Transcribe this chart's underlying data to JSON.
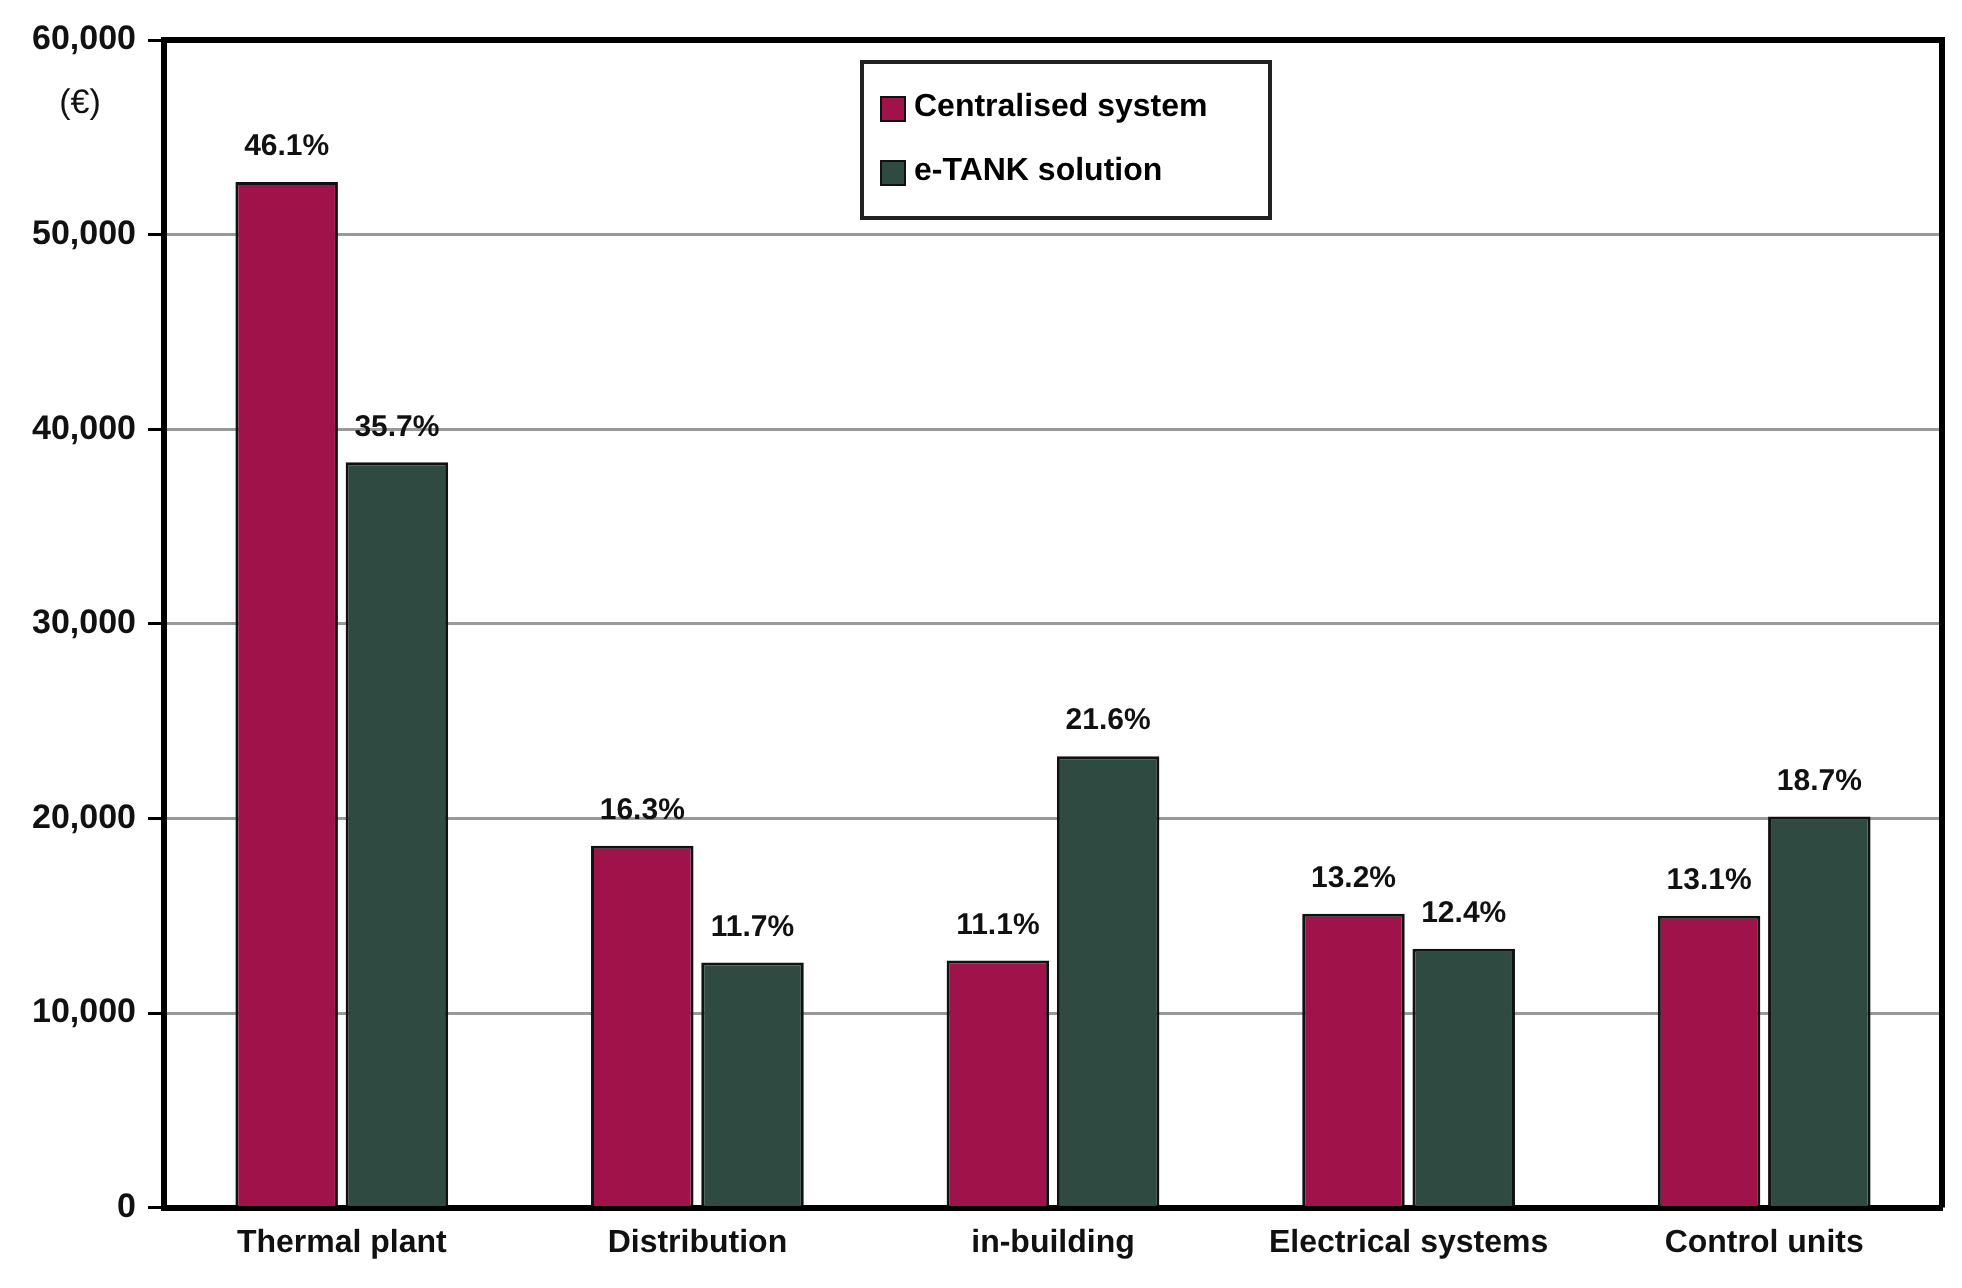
{
  "chart_data": {
    "type": "bar",
    "ylabel": "(€)",
    "categories": [
      "Thermal plant",
      "Distribution",
      "in-building",
      "Electrical systems",
      "Control units"
    ],
    "series": [
      {
        "name": "Centralised system",
        "color": "#a0134a",
        "values": [
          52700,
          18600,
          12700,
          15100,
          15000
        ]
      },
      {
        "name": "e-TANK solution",
        "color": "#2f4a40",
        "values": [
          38300,
          12600,
          23200,
          13300,
          20100
        ]
      }
    ],
    "annotations": [
      {
        "text": "46.1%",
        "x": "Thermal plant",
        "y": 52700
      },
      {
        "text": "16.3%",
        "x": "Distribution",
        "y": 18600
      },
      {
        "text": "11.1%",
        "x": "in-building",
        "y": 12700
      },
      {
        "text": "13.2%",
        "x": "Electrical systems",
        "y": 15100
      },
      {
        "text": "13.1%",
        "x": "Control units",
        "y": 15000
      },
      {
        "text": "35.7%",
        "x": "Thermal plant",
        "y": 38300
      },
      {
        "text": "11.7%",
        "x": "Distribution",
        "y": 12600
      },
      {
        "text": "21.6%",
        "x": "in-building",
        "y": 23200
      },
      {
        "text": "12.4%",
        "x": "Electrical systems",
        "y": 13300
      },
      {
        "text": "18.7%",
        "x": "Control units",
        "y": 20100
      }
    ],
    "ylim": [
      0,
      60000
    ],
    "yticks": [
      0,
      {
        "value": 10000,
        "label": "10,000"
      },
      {
        "value": 20000,
        "label": "20,000"
      },
      {
        "value": 30000,
        "label": "30,000"
      },
      {
        "value": 40000,
        "label": "40,000"
      },
      {
        "value": 50000,
        "label": "50,000"
      },
      {
        "value": 60000,
        "label": "60,000"
      }
    ],
    "grid": "y",
    "legend": "top"
  }
}
